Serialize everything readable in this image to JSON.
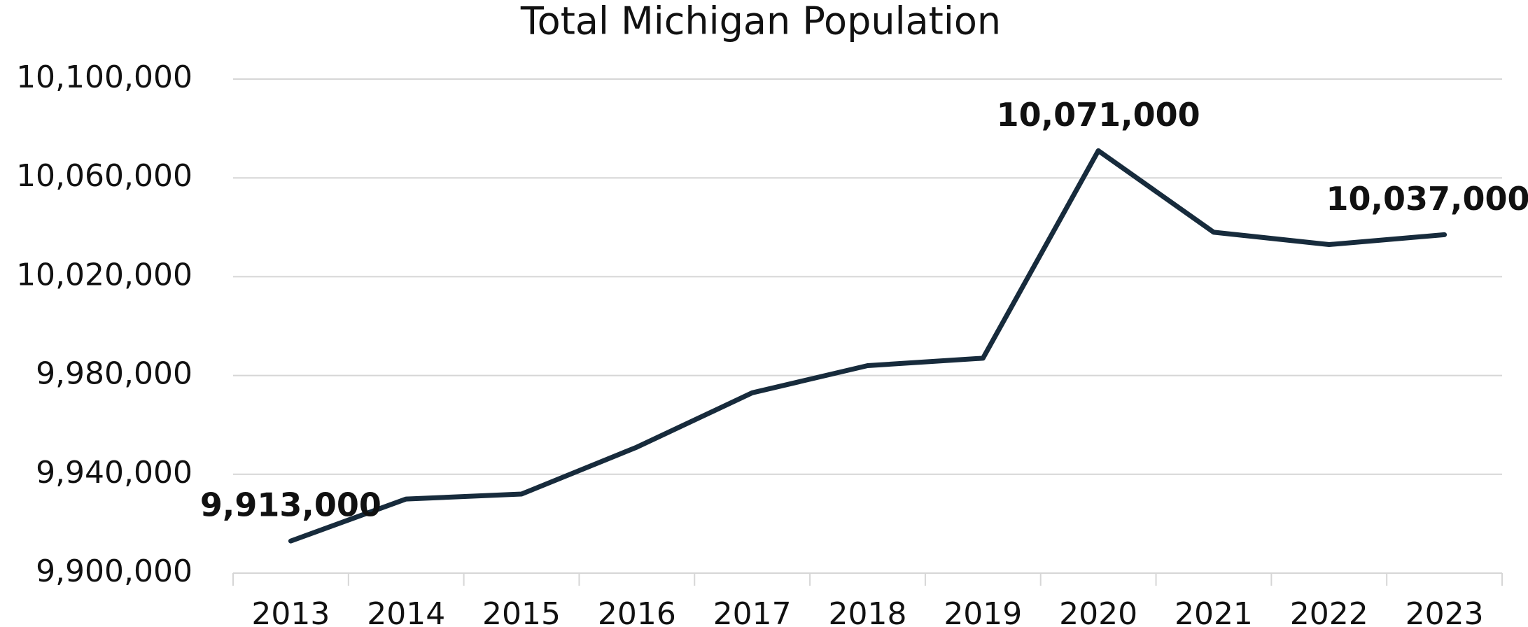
{
  "chart_data": {
    "type": "line",
    "title": "Total Michigan Population",
    "categories": [
      "2013",
      "2014",
      "2015",
      "2016",
      "2017",
      "2018",
      "2019",
      "2020",
      "2021",
      "2022",
      "2023"
    ],
    "series": [
      {
        "color": "#172b3c",
        "values": [
          9913000,
          9930000,
          9932000,
          9951000,
          9973000,
          9984000,
          9987000,
          10071000,
          10038000,
          10033000,
          10037000
        ],
        "value_labels": [
          "9,913,000",
          null,
          null,
          null,
          null,
          null,
          null,
          "10,071,000",
          null,
          null,
          "10,037,000"
        ]
      }
    ],
    "ylim": [
      9900000,
      10100000
    ],
    "yticks": [
      {
        "value": 9900000,
        "label": "9,900,000"
      },
      {
        "value": 9940000,
        "label": "9,940,000"
      },
      {
        "value": 9980000,
        "label": "9,980,000"
      },
      {
        "value": 10020000,
        "label": "10,020,000"
      },
      {
        "value": 10060000,
        "label": "10,060,000"
      },
      {
        "value": 10100000,
        "label": "10,100,000"
      }
    ],
    "grid": true
  }
}
